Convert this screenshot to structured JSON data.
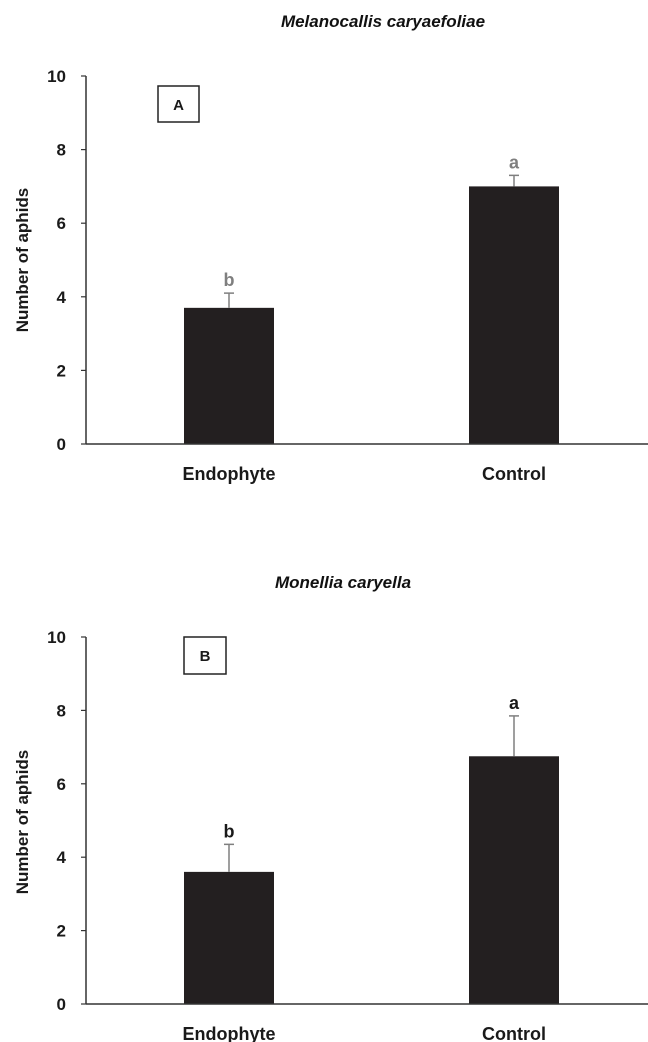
{
  "chart_data": [
    {
      "type": "bar",
      "panel_label": "A",
      "title": "Melanocallis caryaefoliae",
      "ylabel": "Number of aphids",
      "xlabel": "",
      "categories": [
        "Endophyte",
        "Control"
      ],
      "values": [
        3.7,
        7.0
      ],
      "errors": [
        0.4,
        0.3
      ],
      "significance": [
        "b",
        "a"
      ],
      "sig_color": "#7f7f7f",
      "ylim": [
        0,
        10
      ],
      "yticks": [
        "0",
        "2",
        "4",
        "6",
        "8",
        "10"
      ],
      "grid": false,
      "bar_color": "#231f20"
    },
    {
      "type": "bar",
      "panel_label": "B",
      "title": "Monellia caryella",
      "ylabel": "Number of aphids",
      "xlabel": "",
      "categories": [
        "Endophyte",
        "Control"
      ],
      "values": [
        3.6,
        6.75
      ],
      "errors": [
        0.75,
        1.1
      ],
      "significance": [
        "b",
        "a"
      ],
      "sig_color": "#1a1a1a",
      "ylim": [
        0,
        10
      ],
      "yticks": [
        "0",
        "2",
        "4",
        "6",
        "8",
        "10"
      ],
      "grid": false,
      "bar_color": "#231f20"
    }
  ]
}
